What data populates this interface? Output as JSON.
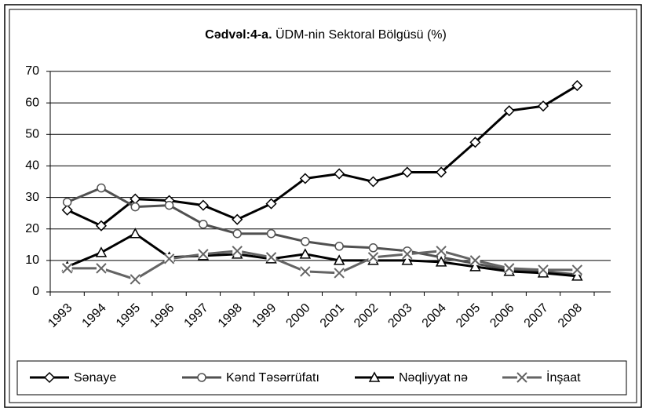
{
  "chart_data": {
    "type": "line",
    "title": [
      "Cədvəl:4-a.",
      "ÜDM-nin Sektoral Bölgüsü (%)"
    ],
    "categories": [
      "1993",
      "1994",
      "1995",
      "1996",
      "1997",
      "1998",
      "1999",
      "2000",
      "2001",
      "2002",
      "2003",
      "2004",
      "2005",
      "2006",
      "2007",
      "2008"
    ],
    "series": [
      {
        "name": "Sənaye",
        "color": "#000000",
        "marker": "diamond",
        "values": [
          26,
          21,
          29.5,
          29,
          27.5,
          23,
          28,
          36,
          37.5,
          35,
          38,
          38,
          47.5,
          57.5,
          59,
          65.5
        ]
      },
      {
        "name": "Kənd Təsərrüfatı",
        "color": "#505050",
        "marker": "circle",
        "values": [
          28.5,
          33,
          27,
          27.5,
          21.5,
          18.5,
          18.5,
          16,
          14.5,
          14,
          13,
          11,
          9,
          7,
          6.5,
          5.5
        ]
      },
      {
        "name": "Nəqliyyat nə",
        "color": "#000000",
        "marker": "triangle",
        "values": [
          8,
          12.5,
          18.5,
          11,
          11.5,
          12,
          10.5,
          12,
          10,
          10,
          10,
          9.5,
          8,
          6.5,
          6,
          5
        ]
      },
      {
        "name": "İnşaat",
        "color": "#646464",
        "marker": "x",
        "values": [
          7.5,
          7.5,
          4,
          10.5,
          12,
          13,
          11,
          6.5,
          6,
          11,
          12,
          13,
          10,
          7.5,
          7,
          7
        ]
      }
    ],
    "ylim": [
      0,
      70
    ],
    "yticks": [
      0,
      10,
      20,
      30,
      40,
      50,
      60,
      70
    ],
    "grid": true,
    "legend": "bottom"
  }
}
